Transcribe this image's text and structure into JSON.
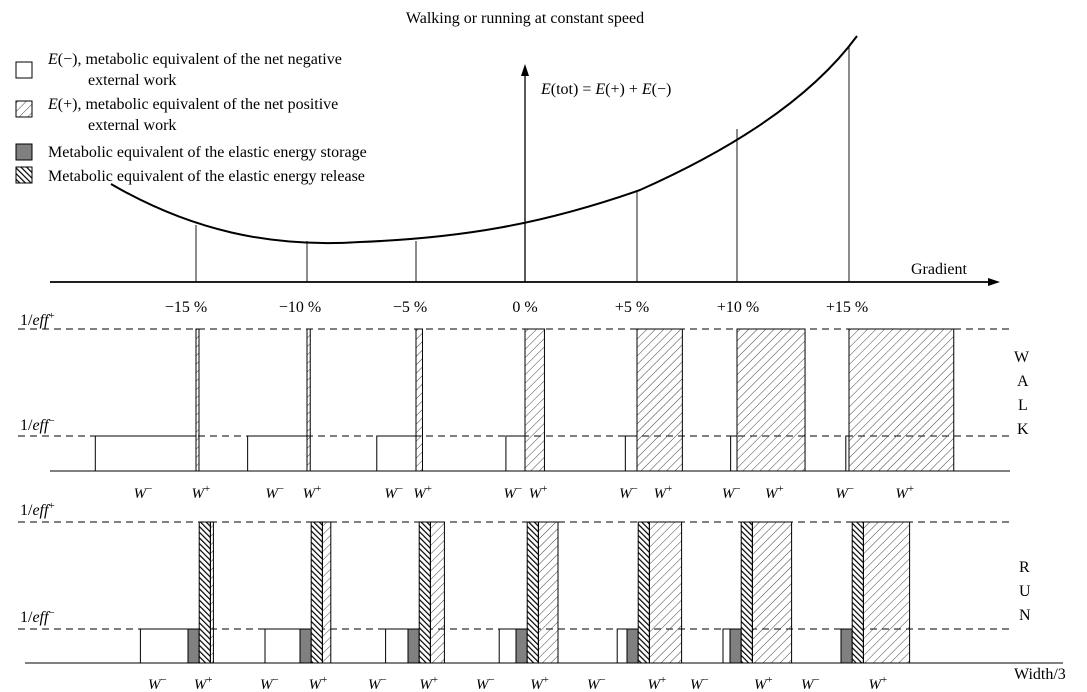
{
  "title": "Walking or running at constant speed",
  "legend": [
    {
      "key": "neg",
      "pattern": "white",
      "line1_em": "E",
      "line1_rest": "(−), metabolic equivalent of the net negative",
      "line2": "external work"
    },
    {
      "key": "pos",
      "pattern": "light-hatch",
      "line1_em": "E",
      "line1_rest": "(+), metabolic equivalent of the net positive",
      "line2": "external work"
    },
    {
      "key": "storage",
      "pattern": "gray",
      "line1": "Metabolic equivalent of the elastic energy storage"
    },
    {
      "key": "release",
      "pattern": "dark-hatch",
      "line1": "Metabolic equivalent of the elastic energy release"
    }
  ],
  "equation": {
    "e1": "E",
    "p1": "(tot) = ",
    "e2": "E",
    "p2": "(+) + ",
    "e3": "E",
    "p3": "(−)"
  },
  "axis_label": "Gradient",
  "gradients": [
    "−15 %",
    "−10 %",
    "−5 %",
    "0 %",
    "+5 %",
    "+10 %",
    "+15 %"
  ],
  "gradient_values": [
    -15,
    -10,
    -5,
    0,
    5,
    10,
    15
  ],
  "levels": {
    "pos": "1/eff⁺",
    "neg": "1/eff⁻",
    "pos_base": "1/",
    "pos_em": "eff",
    "pos_sup": "+",
    "neg_base": "1/",
    "neg_em": "eff",
    "neg_sup": "−"
  },
  "walk_label": [
    "W",
    "A",
    "L",
    "K"
  ],
  "run_label": [
    "R",
    "U",
    "N"
  ],
  "width_note": "Width/3",
  "bar_labels": {
    "neg": "W⁻",
    "pos": "W⁺",
    "neg_base": "W",
    "neg_sup": "−",
    "pos_base": "W",
    "pos_sup": "+"
  },
  "walk": {
    "neg_work": [
      0.95,
      0.56,
      0.37,
      0.18,
      0.11,
      0.06,
      0.03
    ],
    "pos_work": [
      0.02,
      0.03,
      0.06,
      0.18,
      0.42,
      0.63,
      0.97
    ]
  },
  "run": {
    "neg_work": [
      0.34,
      0.25,
      0.16,
      0.12,
      0.07,
      0.05,
      0.0
    ],
    "storage": [
      0.08,
      0.08,
      0.08,
      0.08,
      0.08,
      0.08,
      0.08
    ],
    "release": [
      0.08,
      0.08,
      0.08,
      0.08,
      0.08,
      0.08,
      0.08
    ],
    "pos_work": [
      0.02,
      0.06,
      0.1,
      0.14,
      0.23,
      0.28,
      0.33
    ]
  }
}
